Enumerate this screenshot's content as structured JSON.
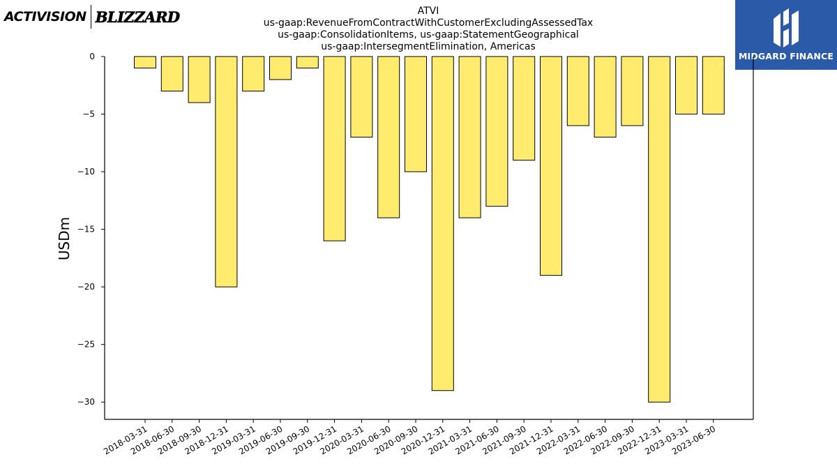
{
  "brand": {
    "left_primary": "ACTIVISION",
    "left_secondary": "BLIZZARD",
    "right_name": "MIDGARD FINANCE",
    "right_bg": "#2b5aa8"
  },
  "chart_data": {
    "type": "bar",
    "title": [
      "ATVI",
      "us-gaap:RevenueFromContractWithCustomerExcludingAssessedTax",
      "us-gaap:ConsolidationItems, us-gaap:StatementGeographical",
      "us-gaap:IntersegmentElimination, Americas"
    ],
    "xlabel": "",
    "ylabel": "USDm",
    "ylim": [
      -31.5,
      0
    ],
    "yticks": [
      0,
      -5,
      -10,
      -15,
      -20,
      -25,
      -30
    ],
    "categories": [
      "2018-03-31",
      "2018-06-30",
      "2018-09-30",
      "2018-12-31",
      "2019-03-31",
      "2019-06-30",
      "2019-09-30",
      "2019-12-31",
      "2020-03-31",
      "2020-06-30",
      "2020-09-30",
      "2020-12-31",
      "2021-03-31",
      "2021-06-30",
      "2021-09-30",
      "2021-12-31",
      "2022-03-31",
      "2022-06-30",
      "2022-09-30",
      "2022-12-31",
      "2023-03-31",
      "2023-06-30"
    ],
    "values": [
      -1,
      -3,
      -4,
      -20,
      -3,
      -2,
      -1,
      -16,
      -7,
      -14,
      -10,
      -29,
      -14,
      -13,
      -9,
      -19,
      -6,
      -7,
      -6,
      -30,
      -5,
      -5
    ],
    "bar_color": "#ffec6e",
    "grid": false,
    "legend": "none"
  }
}
